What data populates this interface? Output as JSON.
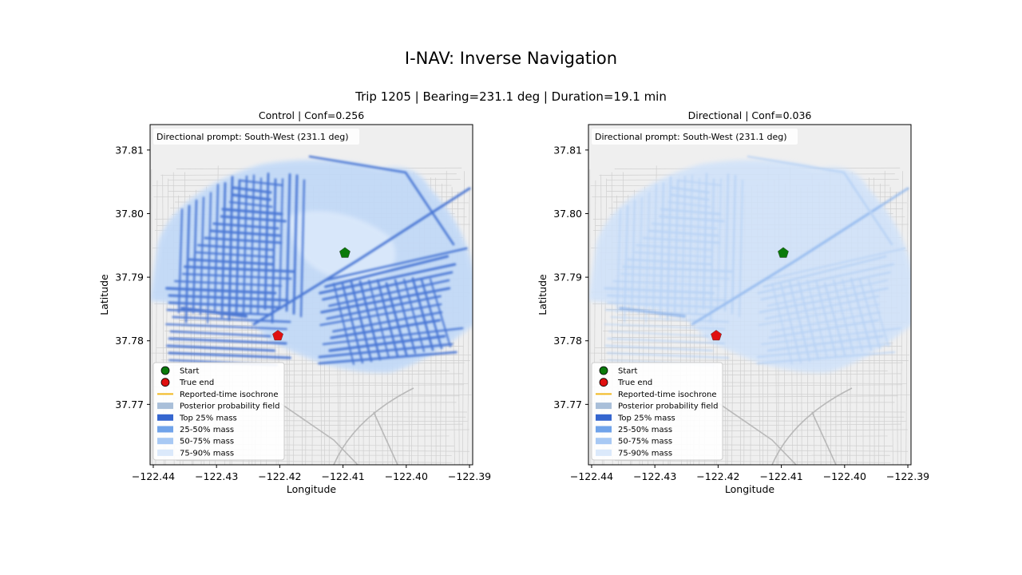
{
  "figure": {
    "title": "I-NAV: Inverse Navigation",
    "subtitle": "Trip 1205 | Bearing=231.1 deg | Duration=19.1 min"
  },
  "colors": {
    "start": "#0a7a0a",
    "true_end": "#e01010",
    "isochrone": "#f2b81f",
    "posterior_field": "#a9bfd9",
    "top25": "#3566cf",
    "mass25_50": "#70a3ea",
    "mass50_75": "#a8c9f4",
    "mass75_90": "#dbe9fb",
    "map_background": "#efefef"
  },
  "chart_data": [
    {
      "type": "heatmap",
      "title": "Control | Conf=0.256",
      "annotation": "Directional prompt: South-West (231.1 deg)",
      "xlabel": "Longitude",
      "ylabel": "Latitude",
      "xlim": [
        -122.4405,
        -122.3895
      ],
      "ylim": [
        37.7605,
        37.814
      ],
      "xticks": [
        -122.44,
        -122.43,
        -122.42,
        -122.41,
        -122.4,
        -122.39
      ],
      "xtick_labels": [
        "−122.44",
        "−122.43",
        "−122.42",
        "−122.41",
        "−122.40",
        "−122.39"
      ],
      "yticks": [
        37.77,
        37.78,
        37.79,
        37.8,
        37.81
      ],
      "ytick_labels": [
        "37.77",
        "37.78",
        "37.79",
        "37.80",
        "37.81"
      ],
      "points": [
        {
          "name": "Start",
          "lon": -122.4097,
          "lat": 37.7938,
          "marker": "pentagon"
        },
        {
          "name": "True end",
          "lon": -122.4203,
          "lat": 37.7808,
          "marker": "pentagon"
        }
      ],
      "legend": {
        "placement": "lower-left",
        "entries": [
          {
            "label": "Start",
            "kind": "circle",
            "color_key": "start"
          },
          {
            "label": "True end",
            "kind": "circle",
            "color_key": "true_end"
          },
          {
            "label": "Reported-time isochrone",
            "kind": "line",
            "color_key": "isochrone"
          },
          {
            "label": "Posterior probability field",
            "kind": "patch",
            "color_key": "posterior_field"
          },
          {
            "label": "Top 25% mass",
            "kind": "patch",
            "color_key": "top25"
          },
          {
            "label": "25-50% mass",
            "kind": "patch",
            "color_key": "mass25_50"
          },
          {
            "label": "50-75% mass",
            "kind": "patch",
            "color_key": "mass50_75"
          },
          {
            "label": "75-90% mass",
            "kind": "patch",
            "color_key": "mass75_90"
          }
        ]
      },
      "intensity": "high"
    },
    {
      "type": "heatmap",
      "title": "Directional | Conf=0.036",
      "annotation": "Directional prompt: South-West (231.1 deg)",
      "xlabel": "Longitude",
      "ylabel": "Latitude",
      "xlim": [
        -122.4405,
        -122.3895
      ],
      "ylim": [
        37.7605,
        37.814
      ],
      "xticks": [
        -122.44,
        -122.43,
        -122.42,
        -122.41,
        -122.4,
        -122.39
      ],
      "xtick_labels": [
        "−122.44",
        "−122.43",
        "−122.42",
        "−122.41",
        "−122.40",
        "−122.39"
      ],
      "yticks": [
        37.77,
        37.78,
        37.79,
        37.8,
        37.81
      ],
      "ytick_labels": [
        "37.77",
        "37.78",
        "37.79",
        "37.80",
        "37.81"
      ],
      "points": [
        {
          "name": "Start",
          "lon": -122.4097,
          "lat": 37.7938,
          "marker": "pentagon"
        },
        {
          "name": "True end",
          "lon": -122.4203,
          "lat": 37.7808,
          "marker": "pentagon"
        }
      ],
      "legend": {
        "placement": "lower-left",
        "entries": [
          {
            "label": "Start",
            "kind": "circle",
            "color_key": "start"
          },
          {
            "label": "True end",
            "kind": "circle",
            "color_key": "true_end"
          },
          {
            "label": "Reported-time isochrone",
            "kind": "line",
            "color_key": "isochrone"
          },
          {
            "label": "Posterior probability field",
            "kind": "patch",
            "color_key": "posterior_field"
          },
          {
            "label": "Top 25% mass",
            "kind": "patch",
            "color_key": "top25"
          },
          {
            "label": "25-50% mass",
            "kind": "patch",
            "color_key": "mass25_50"
          },
          {
            "label": "50-75% mass",
            "kind": "patch",
            "color_key": "mass50_75"
          },
          {
            "label": "75-90% mass",
            "kind": "patch",
            "color_key": "mass75_90"
          }
        ]
      },
      "intensity": "low"
    }
  ]
}
